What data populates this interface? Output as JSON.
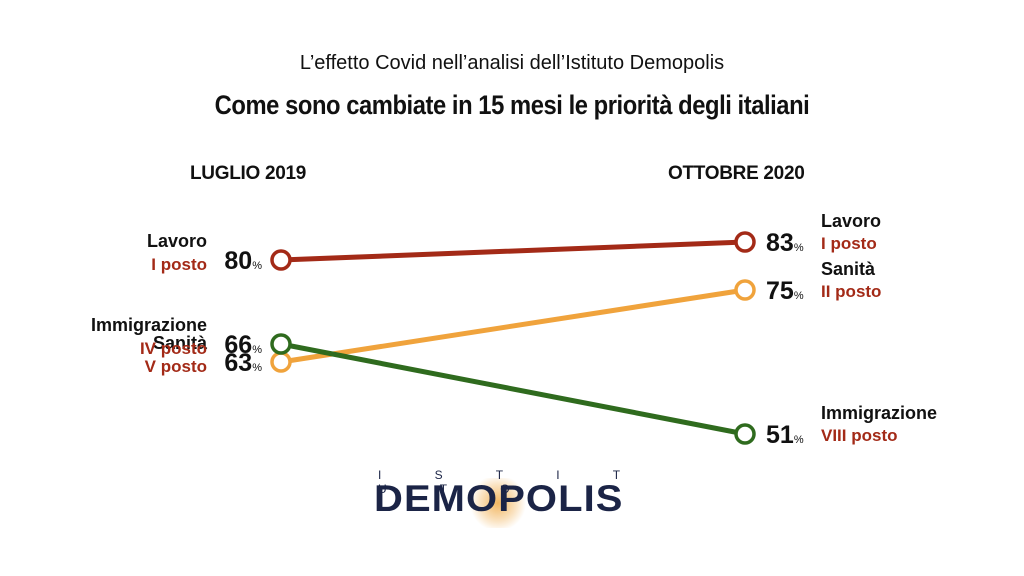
{
  "header": {
    "subtitle": "L’effetto Covid nell’analisi dell’Istituto Demopolis",
    "title": "Come sono cambiate in 15 mesi le priorità degli italiani"
  },
  "chart_data": {
    "type": "line",
    "x": [
      "LUGLIO 2019",
      "OTTOBRE 2020"
    ],
    "unit": "%",
    "series": [
      {
        "name": "Lavoro",
        "values": [
          80,
          83
        ],
        "ranks": [
          "I posto",
          "I posto"
        ],
        "color": "#a32a17"
      },
      {
        "name": "Sanità",
        "values": [
          63,
          75
        ],
        "ranks": [
          "V posto",
          "II posto"
        ],
        "color": "#f0a33c"
      },
      {
        "name": "Immigrazione",
        "values": [
          66,
          51
        ],
        "ranks": [
          "IV posto",
          "VIII posto"
        ],
        "color": "#2f6b1e"
      }
    ]
  },
  "logo": {
    "top": "I S T I T U T O",
    "main": "DEMOPOLIS"
  },
  "colors": {
    "rank_text": "#a32a17",
    "logo": "#1b2446"
  }
}
